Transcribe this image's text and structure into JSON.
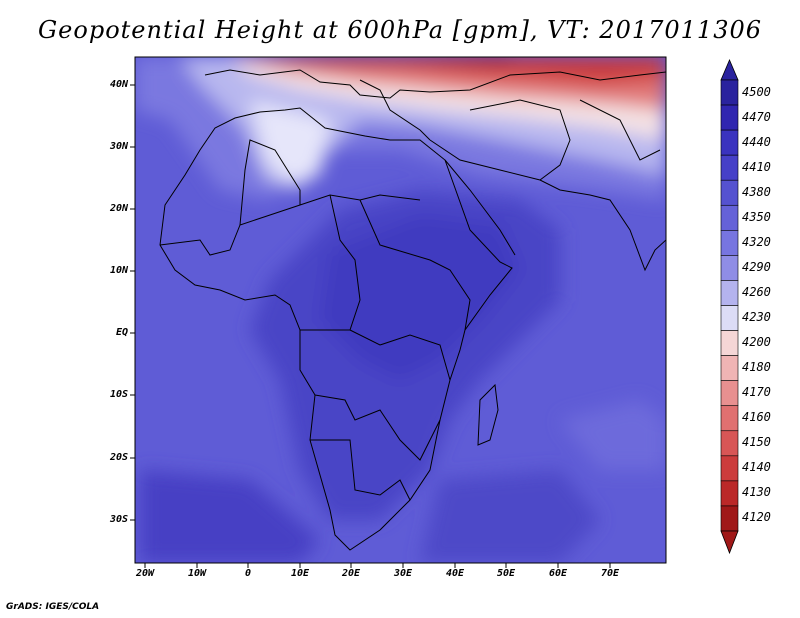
{
  "title": "Geopotential Height at 600hPa [gpm], VT: 2017011306",
  "credit": "GrADS: IGES/COLA",
  "map": {
    "lat_labels": [
      "40N",
      "30N",
      "20N",
      "10N",
      "EQ",
      "10S",
      "20S",
      "30S"
    ],
    "lon_labels": [
      "20W",
      "10W",
      "0",
      "10E",
      "20E",
      "30E",
      "40E",
      "50E",
      "60E",
      "70E"
    ]
  },
  "colorbar": {
    "labels": [
      "4500",
      "4470",
      "4440",
      "4410",
      "4380",
      "4350",
      "4320",
      "4290",
      "4260",
      "4230",
      "4200",
      "4180",
      "4170",
      "4160",
      "4150",
      "4140",
      "4130",
      "4120"
    ],
    "colors": [
      "#2a239e",
      "#3026b0",
      "#3a33bf",
      "#4640c8",
      "#5552d0",
      "#6562d8",
      "#7775e0",
      "#8f8de6",
      "#b4b3ee",
      "#dcdcf6",
      "#f5d6d6",
      "#f0b4b4",
      "#e89090",
      "#e07070",
      "#d85656",
      "#cc3c3c",
      "#bb2828",
      "#a01818"
    ]
  }
}
